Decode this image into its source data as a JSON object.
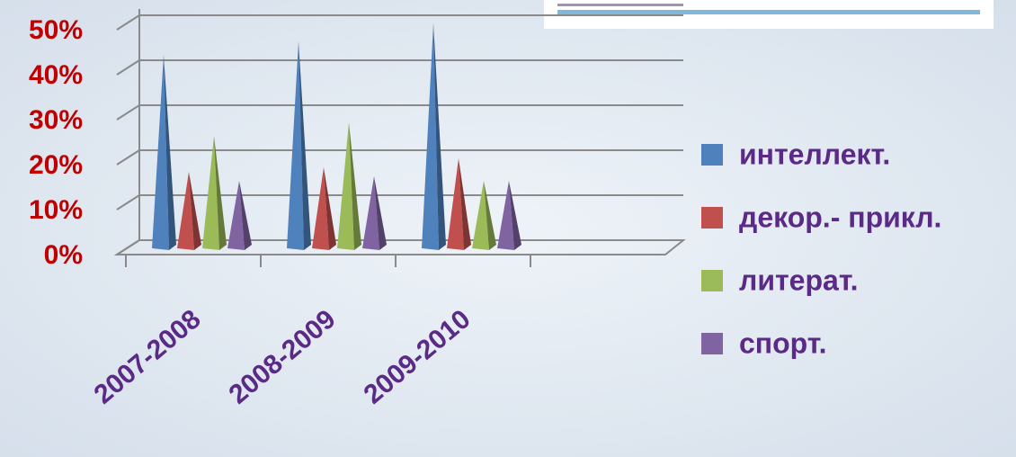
{
  "chart_data": {
    "type": "pyramid",
    "categories": [
      "2007-2008",
      "2008-2009",
      "2009-2010"
    ],
    "series": [
      {
        "name": "интеллект.",
        "color": "#4f81bd",
        "values": [
          43,
          46,
          50
        ]
      },
      {
        "name": "декор.- прикл.",
        "color": "#c0504d",
        "values": [
          17,
          18,
          20
        ]
      },
      {
        "name": "литерат.",
        "color": "#9bbb59",
        "values": [
          25,
          28,
          15
        ]
      },
      {
        "name": "спорт.",
        "color": "#8064a2",
        "values": [
          15,
          16,
          15
        ]
      }
    ],
    "ylim": [
      0,
      50
    ],
    "yticks": [
      {
        "value": 0,
        "label": "0%"
      },
      {
        "value": 10,
        "label": "10%"
      },
      {
        "value": 20,
        "label": "20%"
      },
      {
        "value": 30,
        "label": "30%"
      },
      {
        "value": 40,
        "label": "40%"
      },
      {
        "value": 50,
        "label": "50%"
      }
    ],
    "grid": true,
    "legend": "right"
  }
}
